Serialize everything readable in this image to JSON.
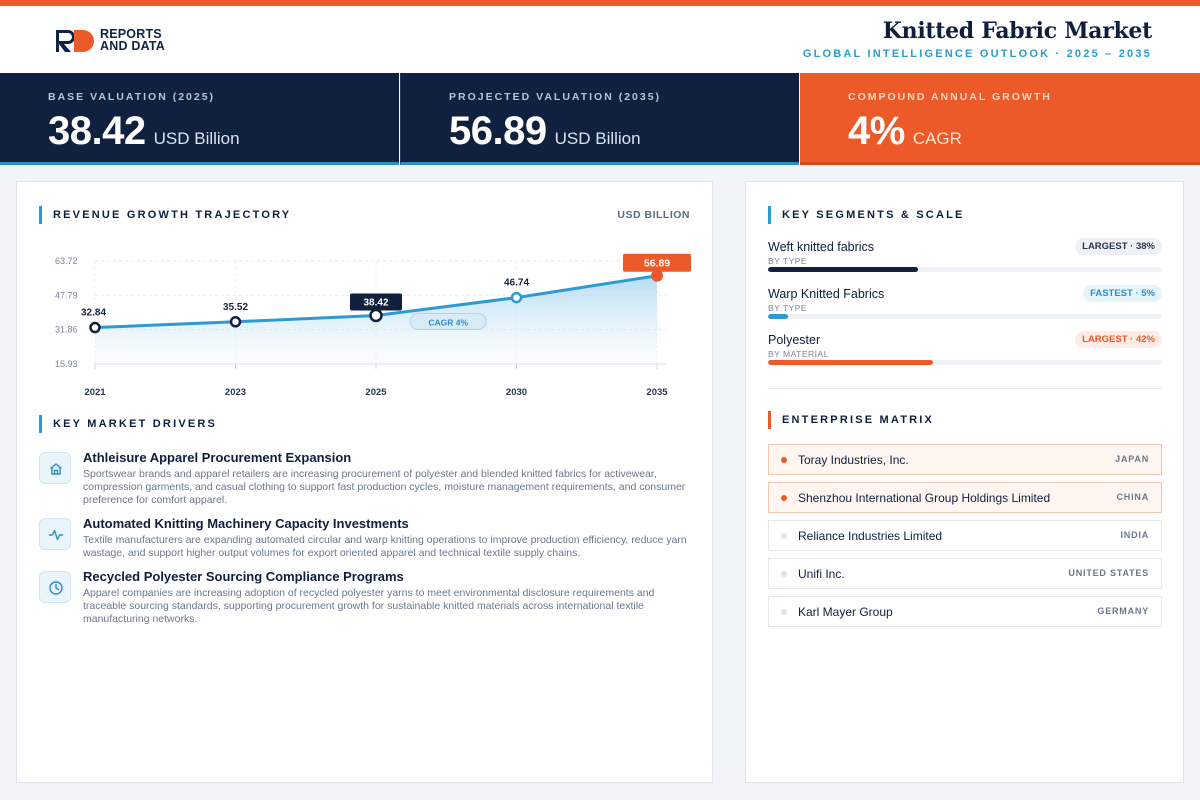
{
  "header": {
    "logo_line1": "REPORTS",
    "logo_line2": "AND DATA",
    "title": "Knitted Fabric Market",
    "subtitle": "GLOBAL INTELLIGENCE OUTLOOK  ·  2025 – 2035"
  },
  "kpis": [
    {
      "label": "BASE VALUATION (2025)",
      "value": "38.42",
      "unit": "USD Billion"
    },
    {
      "label": "PROJECTED VALUATION (2035)",
      "value": "56.89",
      "unit": "USD Billion"
    },
    {
      "label": "COMPOUND ANNUAL GROWTH",
      "value": "4%",
      "unit": "CAGR"
    }
  ],
  "colors": {
    "accent_orange": "#ec5a2a",
    "accent_blue": "#2e9ad3",
    "navy": "#10213f"
  },
  "revenue": {
    "section_title": "REVENUE GROWTH TRAJECTORY",
    "unit_label": "USD BILLION"
  },
  "chart_data": {
    "type": "line",
    "title": "REVENUE GROWTH TRAJECTORY",
    "ylabel": "USD BILLION",
    "x": [
      "2021",
      "2023",
      "2025",
      "2030",
      "2035"
    ],
    "series": [
      {
        "values": [
          32.84,
          35.52,
          38.42,
          46.74,
          56.89
        ]
      }
    ],
    "y_ticks": [
      "63.72",
      "47.79",
      "31.86",
      "15.93"
    ],
    "ylim": [
      15.93,
      63.72
    ],
    "annotation": "CAGR 4%",
    "highlighted": [
      "2025",
      "2035"
    ],
    "grid": true,
    "fill": "area"
  },
  "drivers": {
    "section_title": "KEY MARKET DRIVERS",
    "items": [
      {
        "icon": "home-icon",
        "title": "Athleisure Apparel Procurement Expansion",
        "desc": "Sportswear brands and apparel retailers are increasing procurement of polyester and blended knitted fabrics for activewear, compression garments, and casual clothing to support fast production cycles, moisture management requirements, and consumer preference for comfort apparel."
      },
      {
        "icon": "activity-icon",
        "title": "Automated Knitting Machinery Capacity Investments",
        "desc": "Textile manufacturers are expanding automated circular and warp knitting operations to improve production efficiency, reduce yarn wastage, and support higher output volumes for export oriented apparel and technical textile supply chains."
      },
      {
        "icon": "clock-icon",
        "title": "Recycled Polyester Sourcing Compliance Programs",
        "desc": "Apparel companies are increasing adoption of recycled polyester yarns to meet environmental disclosure requirements and traceable sourcing standards, supporting procurement growth for sustainable knitted materials across international textile manufacturing networks."
      }
    ]
  },
  "segments": {
    "section_title": "KEY SEGMENTS & SCALE",
    "items": [
      {
        "name": "Weft knitted fabrics",
        "sub": "BY TYPE",
        "badge": "LARGEST · 38%",
        "share": 0.38,
        "color": "#10213f",
        "badge_bg": "#eef1f6",
        "badge_fg": "#2a3650"
      },
      {
        "name": "Warp Knitted Fabrics",
        "sub": "BY TYPE",
        "badge": "FASTEST · 5%",
        "share": 0.05,
        "color": "#2e9ad3",
        "badge_bg": "#e6f4fb",
        "badge_fg": "#2e8ec7"
      },
      {
        "name": "Polyester",
        "sub": "BY MATERIAL",
        "badge": "LARGEST · 42%",
        "share": 0.42,
        "color": "#ec5a2a",
        "badge_bg": "#fdece5",
        "badge_fg": "#ec5a2a"
      }
    ]
  },
  "enterprise": {
    "section_title": "ENTERPRISE MATRIX",
    "items": [
      {
        "name": "Toray Industries, Inc.",
        "country": "JAPAN",
        "highlight": true
      },
      {
        "name": "Shenzhou International Group Holdings Limited",
        "country": "CHINA",
        "highlight": true
      },
      {
        "name": "Reliance Industries Limited",
        "country": "INDIA",
        "highlight": false
      },
      {
        "name": "Unifi Inc.",
        "country": "UNITED STATES",
        "highlight": false
      },
      {
        "name": "Karl Mayer Group",
        "country": "GERMANY",
        "highlight": false
      }
    ]
  }
}
